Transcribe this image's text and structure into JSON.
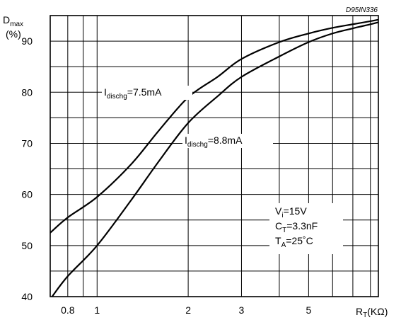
{
  "figure_code": "D95IN336",
  "chart_data": {
    "type": "line",
    "x_scale": "log",
    "xlim": [
      0.7,
      8.5
    ],
    "ylim": [
      40,
      95
    ],
    "grid": true,
    "x_ticks": [
      0.7,
      0.8,
      0.9,
      1,
      2,
      3,
      4,
      5,
      6,
      7,
      8
    ],
    "x_tick_labels": [
      {
        "value": 0.8,
        "label": "0.8"
      },
      {
        "value": 1,
        "label": "1"
      },
      {
        "value": 2,
        "label": "2"
      },
      {
        "value": 3,
        "label": "3"
      },
      {
        "value": 5,
        "label": "5"
      }
    ],
    "y_ticks": [
      40,
      45,
      50,
      55,
      60,
      65,
      70,
      75,
      80,
      85,
      90
    ],
    "y_tick_labels": [
      {
        "value": 40,
        "label": "40"
      },
      {
        "value": 50,
        "label": "50"
      },
      {
        "value": 60,
        "label": "60"
      },
      {
        "value": 70,
        "label": "70"
      },
      {
        "value": 80,
        "label": "80"
      },
      {
        "value": 90,
        "label": "90"
      }
    ],
    "ylabel": {
      "main": "D",
      "sub": "max",
      "unit": "(%)"
    },
    "xlabel": {
      "main": "R",
      "sub": "T",
      "unit": "(KΩ)"
    },
    "series": [
      {
        "label": {
          "main": "I",
          "sub": "dischg",
          "rest": "=7.5mA"
        },
        "x": [
          0.7,
          0.8,
          1.0,
          1.3,
          1.6,
          2.0,
          2.5,
          3.0,
          4.0,
          5.0,
          6.0,
          7.0,
          8.0,
          8.5
        ],
        "y": [
          52.5,
          55.5,
          59.5,
          66.0,
          72.5,
          79.0,
          83.0,
          86.5,
          89.8,
          91.5,
          92.6,
          93.3,
          93.9,
          94.2
        ]
      },
      {
        "label": {
          "main": "I",
          "sub": "dischg",
          "rest": "=8.8mA"
        },
        "x": [
          0.71,
          0.8,
          1.0,
          1.3,
          1.6,
          2.0,
          2.5,
          3.0,
          4.0,
          5.0,
          6.0,
          7.0,
          8.0,
          8.5
        ],
        "y": [
          40.0,
          44.0,
          50.0,
          59.0,
          66.5,
          74.0,
          79.2,
          83.0,
          87.0,
          89.8,
          91.5,
          92.5,
          93.3,
          93.7
        ]
      }
    ],
    "conditions": [
      {
        "main": "V",
        "sub": "i",
        "rest": "=15V"
      },
      {
        "main": "C",
        "sub": "T",
        "rest": "=3.3nF"
      },
      {
        "main": "T",
        "sub": "A",
        "rest": "=25˚C"
      }
    ]
  }
}
